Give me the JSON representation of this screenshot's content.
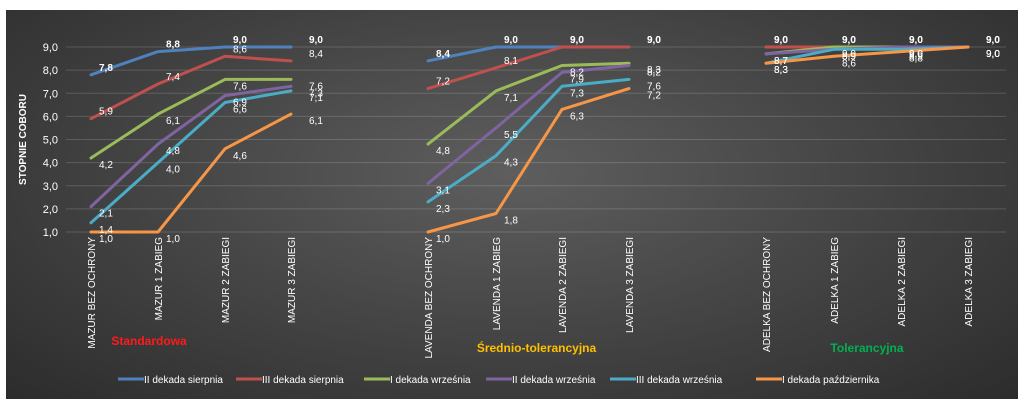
{
  "chart_data": {
    "type": "line",
    "ylabel": "STOPNIE COBORU",
    "ylim": [
      1,
      9
    ],
    "y_ticks": [
      "1,0",
      "2,0",
      "3,0",
      "4,0",
      "5,0",
      "6,0",
      "7,0",
      "8,0",
      "9,0"
    ],
    "grid": true,
    "legend_position": "bottom",
    "categories": [
      "MAZUR BEZ OCHRONY",
      "MAZUR 1 ZABIEG",
      "MAZUR 2 ZABIEGI",
      "MAZUR 3 ZABIEGI",
      "LAVENDA BEZ OCHRONY",
      "LAVENDA 1 ZABIEG",
      "LAVENDA 2 ZABIEGI",
      "LAVENDA 3 ZABIEGI",
      "ADELKA BEZ OCHRONY",
      "ADELKA 1 ZABIEG",
      "ADELKA 2 ZABIEGI",
      "ADELKA 3 ZABIEGI"
    ],
    "groups": [
      {
        "label": "Standardowa",
        "color": "#ff1a1a",
        "start": 0
      },
      {
        "label": "Średnio-tolerancyjna",
        "color": "#ffc000",
        "start": 4
      },
      {
        "label": "Tolerancyjna",
        "color": "#00b050",
        "start": 8
      }
    ],
    "series": [
      {
        "name": "II dekada sierpnia",
        "color": "#4f81bd",
        "values": [
          7.8,
          8.8,
          9.0,
          9.0,
          8.4,
          9.0,
          9.0,
          9.0,
          9.0,
          9.0,
          9.0,
          9.0
        ],
        "labels": [
          "7,8",
          "8,8",
          "9,0",
          "9,0",
          "8,4",
          "9,0",
          "9,0",
          "9,0",
          "9,0",
          "9,0",
          "9,0",
          "9,0"
        ]
      },
      {
        "name": "III dekada sierpnia",
        "color": "#c0504d",
        "values": [
          5.9,
          7.4,
          8.6,
          8.4,
          7.2,
          8.1,
          9.0,
          9.0,
          9.0,
          9.0,
          9.0,
          9.0
        ],
        "labels": [
          "5,9",
          "7,4",
          "8,6",
          "8,4",
          "7,2",
          "8,1",
          "9,0",
          "9,0",
          "9,0",
          "9,0",
          "9,0",
          "9,0"
        ]
      },
      {
        "name": "I dekada września",
        "color": "#9bbb59",
        "values": [
          4.2,
          6.1,
          7.6,
          7.6,
          4.8,
          7.1,
          8.2,
          8.3,
          8.7,
          9.0,
          9.0,
          9.0
        ],
        "labels": [
          "4,2",
          "6,1",
          "7,6",
          "7,6",
          "4,8",
          "7,1",
          "8,2",
          "8,3",
          "8,7",
          "9,0",
          "9,0",
          "9,0"
        ]
      },
      {
        "name": "II dekada września",
        "color": "#8064a2",
        "values": [
          2.1,
          4.8,
          6.9,
          7.3,
          3.1,
          5.5,
          7.9,
          8.2,
          8.7,
          8.9,
          9.0,
          9.0
        ],
        "labels": [
          "2,1",
          "4,8",
          "6,9",
          "7,3",
          "3,1",
          "5,5",
          "7,9",
          "8,2",
          "8,7",
          "8,9",
          "9,0",
          "9,0"
        ]
      },
      {
        "name": "III dekada września",
        "color": "#4bacc6",
        "values": [
          1.4,
          4.0,
          6.6,
          7.1,
          2.3,
          4.3,
          7.3,
          7.6,
          8.3,
          8.9,
          8.9,
          9.0
        ],
        "labels": [
          "1,4",
          "4,0",
          "6,6",
          "7,1",
          "2,3",
          "4,3",
          "7,3",
          "7,6",
          "8,3",
          "8,9",
          "8,9",
          "9,0"
        ]
      },
      {
        "name": "I dekada października",
        "color": "#f79646",
        "values": [
          1.0,
          1.0,
          4.6,
          6.1,
          1.0,
          1.8,
          6.3,
          7.2,
          8.3,
          8.6,
          8.8,
          9.0
        ],
        "labels": [
          "1,0",
          "1,0",
          "4,6",
          "6,1",
          "1,0",
          "1,8",
          "6,3",
          "7,2",
          "8,3",
          "8,6",
          "8,8",
          "9,0"
        ]
      }
    ]
  }
}
